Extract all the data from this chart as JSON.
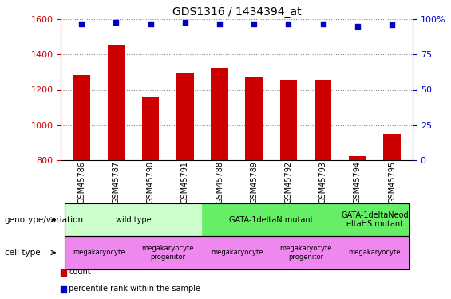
{
  "title": "GDS1316 / 1434394_at",
  "samples": [
    "GSM45786",
    "GSM45787",
    "GSM45790",
    "GSM45791",
    "GSM45788",
    "GSM45789",
    "GSM45792",
    "GSM45793",
    "GSM45794",
    "GSM45795"
  ],
  "counts": [
    1285,
    1450,
    1155,
    1295,
    1325,
    1275,
    1255,
    1255,
    820,
    950
  ],
  "percentiles": [
    97,
    98,
    97,
    98,
    97,
    97,
    97,
    97,
    95,
    96
  ],
  "ylim_left": [
    800,
    1600
  ],
  "ylim_right": [
    0,
    100
  ],
  "yticks_left": [
    800,
    1000,
    1200,
    1400,
    1600
  ],
  "yticks_right": [
    0,
    25,
    50,
    75,
    100
  ],
  "bar_color": "#cc0000",
  "dot_color": "#0000cc",
  "genotype_groups": [
    {
      "label": "wild type",
      "start": 0,
      "end": 4,
      "color": "#ccffcc"
    },
    {
      "label": "GATA-1deltaN mutant",
      "start": 4,
      "end": 8,
      "color": "#66ee66"
    },
    {
      "label": "GATA-1deltaNeod\neltaHS mutant",
      "start": 8,
      "end": 10,
      "color": "#66ee66"
    }
  ],
  "cell_type_groups": [
    {
      "label": "megakaryocyte",
      "start": 0,
      "end": 2,
      "color": "#ee88ee"
    },
    {
      "label": "megakaryocyte\nprogenitor",
      "start": 2,
      "end": 4,
      "color": "#ee88ee"
    },
    {
      "label": "megakaryocyte",
      "start": 4,
      "end": 6,
      "color": "#ee88ee"
    },
    {
      "label": "megakaryocyte\nprogenitor",
      "start": 6,
      "end": 8,
      "color": "#ee88ee"
    },
    {
      "label": "megakaryocyte",
      "start": 8,
      "end": 10,
      "color": "#ee88ee"
    }
  ],
  "bar_color_hex": "#cc0000",
  "dot_color_hex": "#0000cc",
  "grid_color": "#888888",
  "bg_color": "#ffffff",
  "genotype_row_label": "genotype/variation",
  "cell_type_row_label": "cell type",
  "legend_count": "count",
  "legend_pct": "percentile rank within the sample",
  "right_axis_top_label": "100%",
  "tick_label_fontsize": 8,
  "bar_width": 0.5
}
